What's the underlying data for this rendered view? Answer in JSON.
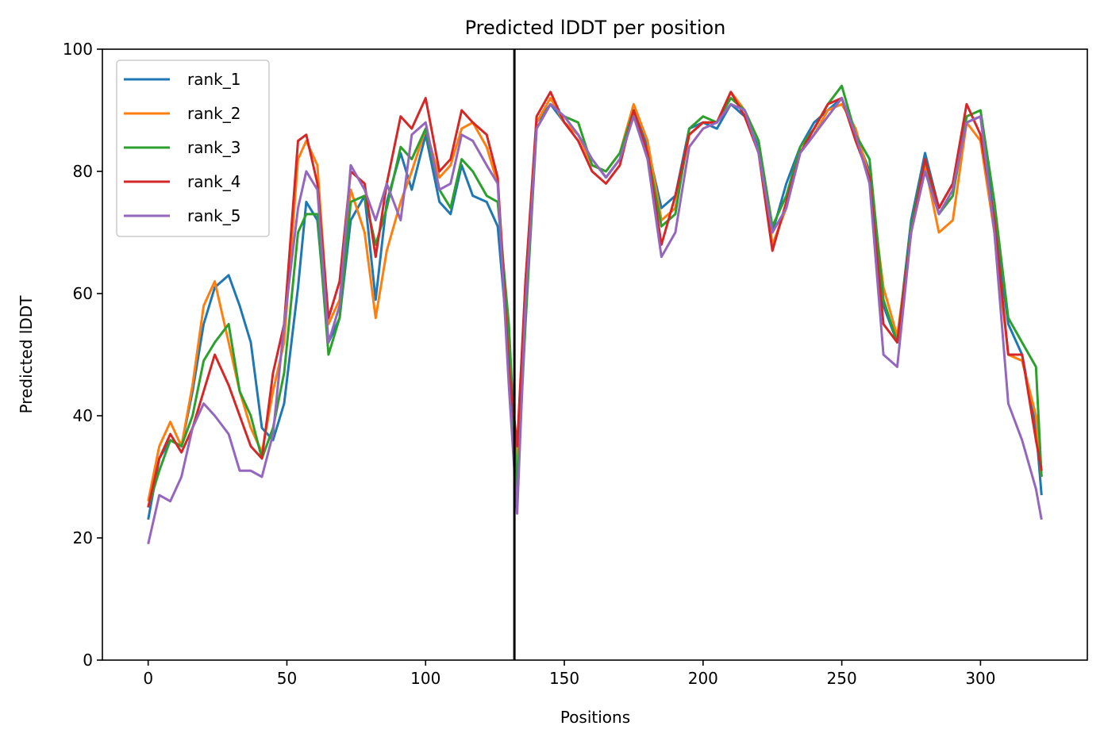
{
  "chart_data": {
    "type": "line",
    "title": "Predicted lDDT per position",
    "xlabel": "Positions",
    "ylabel": "Predicted lDDT",
    "xlim": [
      -16.5,
      338.5
    ],
    "ylim": [
      0,
      100
    ],
    "xticks": [
      0,
      50,
      100,
      150,
      200,
      250,
      300
    ],
    "yticks": [
      0,
      20,
      40,
      60,
      80,
      100
    ],
    "grid": false,
    "legend_position": "upper-left",
    "vline": {
      "x": 132,
      "color": "#000000"
    },
    "series": [
      {
        "name": "rank_1",
        "color": "#1f77b4",
        "x": [
          0,
          4,
          8,
          12,
          16,
          20,
          24,
          29,
          33,
          37,
          41,
          45,
          49,
          54,
          57,
          61,
          65,
          69,
          73,
          78,
          82,
          86,
          91,
          95,
          100,
          105,
          109,
          113,
          117,
          122,
          126,
          130,
          133,
          136,
          140,
          145,
          150,
          155,
          160,
          165,
          170,
          175,
          180,
          185,
          190,
          195,
          200,
          205,
          210,
          215,
          220,
          225,
          230,
          235,
          240,
          245,
          250,
          255,
          260,
          265,
          270,
          275,
          280,
          285,
          290,
          295,
          300,
          305,
          310,
          315,
          320,
          322
        ],
        "y": [
          23,
          33,
          36,
          35,
          44,
          55,
          61,
          63,
          58,
          52,
          38,
          36,
          42,
          61,
          75,
          72,
          52,
          56,
          72,
          76,
          59,
          75,
          83,
          77,
          86,
          75,
          73,
          81,
          76,
          75,
          71,
          50,
          30,
          60,
          88,
          91,
          88,
          86,
          82,
          79,
          82,
          90,
          84,
          74,
          76,
          87,
          88,
          87,
          91,
          89,
          84,
          70,
          78,
          84,
          88,
          90,
          92,
          86,
          80,
          58,
          52,
          72,
          83,
          74,
          78,
          88,
          89,
          72,
          55,
          50,
          38,
          27
        ]
      },
      {
        "name": "rank_2",
        "color": "#ff7f0e",
        "x": [
          0,
          4,
          8,
          12,
          16,
          20,
          24,
          29,
          33,
          37,
          41,
          45,
          49,
          54,
          57,
          61,
          65,
          69,
          73,
          78,
          82,
          86,
          91,
          95,
          100,
          105,
          109,
          113,
          117,
          122,
          126,
          130,
          133,
          136,
          140,
          145,
          150,
          155,
          160,
          165,
          170,
          175,
          180,
          185,
          190,
          195,
          200,
          205,
          210,
          215,
          220,
          225,
          230,
          235,
          240,
          245,
          250,
          255,
          260,
          265,
          270,
          275,
          280,
          285,
          290,
          295,
          300,
          305,
          310,
          315,
          320,
          322
        ],
        "y": [
          26,
          35,
          39,
          35,
          45,
          58,
          62,
          52,
          44,
          38,
          34,
          44,
          52,
          82,
          85,
          81,
          55,
          59,
          77,
          70,
          56,
          67,
          75,
          80,
          87,
          79,
          81,
          87,
          88,
          84,
          78,
          52,
          32,
          62,
          88,
          92,
          88,
          86,
          81,
          80,
          83,
          91,
          85,
          72,
          74,
          86,
          88,
          88,
          93,
          90,
          85,
          68,
          74,
          83,
          86,
          90,
          91,
          87,
          79,
          61,
          53,
          70,
          81,
          70,
          72,
          88,
          85,
          70,
          50,
          49,
          40,
          30
        ]
      },
      {
        "name": "rank_3",
        "color": "#2ca02c",
        "x": [
          0,
          4,
          8,
          12,
          16,
          20,
          24,
          29,
          33,
          37,
          41,
          45,
          49,
          54,
          57,
          61,
          65,
          69,
          73,
          78,
          82,
          86,
          91,
          95,
          100,
          105,
          109,
          113,
          117,
          122,
          126,
          130,
          133,
          136,
          140,
          145,
          150,
          155,
          160,
          165,
          170,
          175,
          180,
          185,
          190,
          195,
          200,
          205,
          210,
          215,
          220,
          225,
          230,
          235,
          240,
          245,
          250,
          255,
          260,
          265,
          270,
          275,
          280,
          285,
          290,
          295,
          300,
          305,
          310,
          315,
          320,
          322
        ],
        "y": [
          25,
          31,
          36,
          35,
          40,
          49,
          52,
          55,
          44,
          40,
          33,
          38,
          47,
          70,
          73,
          73,
          50,
          56,
          75,
          76,
          68,
          74,
          84,
          82,
          87,
          77,
          74,
          82,
          80,
          76,
          75,
          55,
          28,
          55,
          87,
          91,
          89,
          88,
          81,
          80,
          83,
          90,
          83,
          71,
          73,
          87,
          89,
          88,
          92,
          90,
          85,
          71,
          76,
          84,
          87,
          91,
          94,
          86,
          82,
          59,
          52,
          71,
          82,
          73,
          76,
          89,
          90,
          75,
          56,
          52,
          48,
          30
        ]
      },
      {
        "name": "rank_4",
        "color": "#d62728",
        "x": [
          0,
          4,
          8,
          12,
          16,
          20,
          24,
          29,
          33,
          37,
          41,
          45,
          49,
          54,
          57,
          61,
          65,
          69,
          73,
          78,
          82,
          86,
          91,
          95,
          100,
          105,
          109,
          113,
          117,
          122,
          126,
          130,
          133,
          136,
          140,
          145,
          150,
          155,
          160,
          165,
          170,
          175,
          180,
          185,
          190,
          195,
          200,
          205,
          210,
          215,
          220,
          225,
          230,
          235,
          240,
          245,
          250,
          255,
          260,
          265,
          270,
          275,
          280,
          285,
          290,
          295,
          300,
          305,
          310,
          315,
          320,
          322
        ],
        "y": [
          25,
          33,
          37,
          34,
          38,
          44,
          50,
          45,
          40,
          35,
          33,
          47,
          55,
          85,
          86,
          78,
          56,
          62,
          80,
          78,
          66,
          78,
          89,
          87,
          92,
          80,
          82,
          90,
          88,
          86,
          79,
          48,
          35,
          62,
          89,
          93,
          88,
          85,
          80,
          78,
          81,
          90,
          83,
          68,
          76,
          86,
          88,
          88,
          93,
          89,
          83,
          67,
          75,
          83,
          87,
          91,
          92,
          85,
          79,
          55,
          52,
          70,
          82,
          74,
          78,
          91,
          86,
          72,
          50,
          50,
          36,
          31
        ]
      },
      {
        "name": "rank_5",
        "color": "#9467bd",
        "x": [
          0,
          4,
          8,
          12,
          16,
          20,
          24,
          29,
          33,
          37,
          41,
          45,
          49,
          54,
          57,
          61,
          65,
          69,
          73,
          78,
          82,
          86,
          91,
          95,
          100,
          105,
          109,
          113,
          117,
          122,
          126,
          130,
          133,
          136,
          140,
          145,
          150,
          155,
          160,
          165,
          170,
          175,
          180,
          185,
          190,
          195,
          200,
          205,
          210,
          215,
          220,
          225,
          230,
          235,
          240,
          245,
          250,
          255,
          260,
          265,
          270,
          275,
          280,
          285,
          290,
          295,
          300,
          305,
          310,
          315,
          320,
          322
        ],
        "y": [
          19,
          27,
          26,
          30,
          38,
          42,
          40,
          37,
          31,
          31,
          30,
          37,
          55,
          74,
          80,
          77,
          52,
          58,
          81,
          77,
          72,
          78,
          72,
          86,
          88,
          77,
          78,
          86,
          85,
          81,
          78,
          45,
          24,
          58,
          87,
          91,
          89,
          86,
          82,
          79,
          82,
          89,
          82,
          66,
          70,
          84,
          87,
          88,
          91,
          90,
          83,
          70,
          74,
          83,
          86,
          89,
          92,
          86,
          78,
          50,
          48,
          70,
          80,
          73,
          77,
          88,
          89,
          70,
          42,
          36,
          28,
          23
        ]
      }
    ]
  }
}
